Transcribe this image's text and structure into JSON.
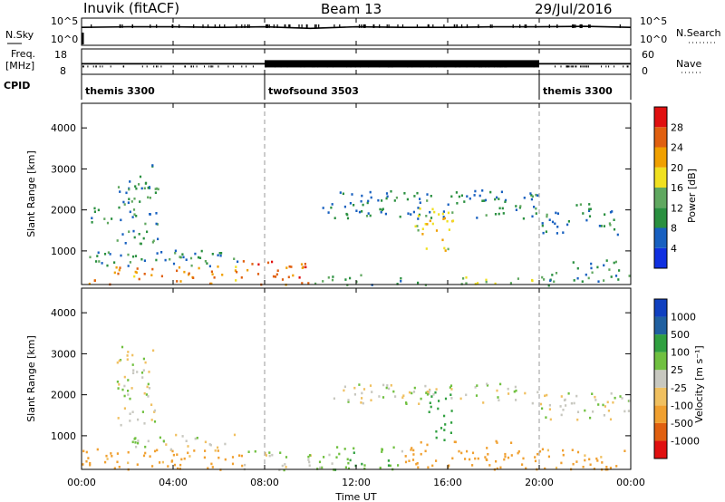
{
  "header": {
    "station": "Inuvik (fitACF)",
    "beam": "Beam 13",
    "date": "29/Jul/2016"
  },
  "side_labels": {
    "nsky": "N.Sky",
    "freq": "Freq.",
    "freq_unit": "[MHz]",
    "cpid": "CPID",
    "nsearch": "N.Search",
    "nave": "Nave"
  },
  "time_axis": {
    "label": "Time UT",
    "ticks": [
      "00:00",
      "04:00",
      "08:00",
      "12:00",
      "16:00",
      "20:00",
      "00:00"
    ]
  },
  "colors": {
    "power": [
      "#1030e0",
      "#1860c0",
      "#2a9040",
      "#60a860",
      "#f0e020",
      "#f0a000",
      "#e06010",
      "#e01010"
    ],
    "velocity": [
      "#1040c0",
      "#2060a0",
      "#30a040",
      "#70c040",
      "#c8c8c0",
      "#f0c060",
      "#f0a030",
      "#e06010",
      "#e01010"
    ]
  },
  "chart_data": [
    {
      "type": "line",
      "name": "noise-search",
      "left_ticks": [
        "10^5",
        "10^0"
      ],
      "right_ticks": [
        "10^5",
        "10^0"
      ],
      "x": [
        0,
        2,
        4,
        6,
        8,
        10,
        12,
        14,
        16,
        18,
        20,
        22,
        24
      ],
      "series": [
        {
          "name": "N.Sky",
          "values": [
            3.3,
            3.4,
            3.4,
            3.3,
            3.4,
            3.1,
            3.4,
            3.3,
            3.3,
            3.4,
            3.4,
            3.5,
            3.3
          ]
        }
      ]
    },
    {
      "type": "line",
      "name": "freq-nave",
      "left_ticks": [
        "18",
        "8"
      ],
      "right_ticks": [
        "60",
        "0"
      ],
      "x": [
        0,
        8,
        8,
        20,
        20,
        24
      ],
      "series": [
        {
          "name": "Freq.",
          "values": [
            12,
            12,
            12,
            12,
            12,
            12
          ]
        }
      ]
    },
    {
      "type": "table",
      "name": "cpid",
      "segments": [
        {
          "start": 0,
          "end": 8,
          "label": "themis 3300"
        },
        {
          "start": 8,
          "end": 20,
          "label": "twofsound 3503"
        },
        {
          "start": 20,
          "end": 24,
          "label": "themis 3300"
        }
      ]
    },
    {
      "type": "heatmap",
      "name": "power",
      "ylabel": "Slant Range [km]",
      "yticks": [
        "1000",
        "2000",
        "3000",
        "4000"
      ],
      "ylim": [
        180,
        4600
      ],
      "xlim": [
        0,
        24
      ],
      "colorbar": {
        "label": "Power [dB]",
        "ticks": [
          "4",
          "8",
          "12",
          "16",
          "20",
          "24",
          "28"
        ],
        "range": [
          0,
          30
        ]
      },
      "regions": [
        {
          "t0": 0,
          "t1": 7,
          "r0": 180,
          "r1": 650,
          "v": 22
        },
        {
          "t0": 0,
          "t1": 7,
          "r0": 650,
          "r1": 1050,
          "v": 9
        },
        {
          "t0": 0.2,
          "t1": 1.4,
          "r0": 1700,
          "r1": 2400,
          "v": 8
        },
        {
          "t0": 1.5,
          "t1": 3.4,
          "r0": 1200,
          "r1": 3200,
          "v": 10
        },
        {
          "t0": 7,
          "t1": 10,
          "r0": 180,
          "r1": 800,
          "v": 24
        },
        {
          "t0": 10,
          "t1": 14,
          "r0": 180,
          "r1": 450,
          "v": 10
        },
        {
          "t0": 10.5,
          "t1": 20,
          "r0": 1800,
          "r1": 2500,
          "v": 8
        },
        {
          "t0": 14.5,
          "t1": 16.2,
          "r0": 900,
          "r1": 2100,
          "v": 18
        },
        {
          "t0": 14,
          "t1": 20,
          "r0": 180,
          "r1": 400,
          "v": 14
        },
        {
          "t0": 20,
          "t1": 23.5,
          "r0": 1400,
          "r1": 2200,
          "v": 8
        },
        {
          "t0": 20,
          "t1": 24,
          "r0": 180,
          "r1": 800,
          "v": 10
        }
      ]
    },
    {
      "type": "heatmap",
      "name": "velocity",
      "ylabel": "Slant Range [km]",
      "yticks": [
        "1000",
        "2000",
        "3000",
        "4000"
      ],
      "ylim": [
        180,
        4600
      ],
      "xlim": [
        0,
        24
      ],
      "colorbar": {
        "label": "Velocity [m s⁻¹]",
        "ticks": [
          "1000",
          "500",
          "100",
          "25",
          "-25",
          "-100",
          "-500",
          "-1000"
        ],
        "range": [
          -1200,
          1200
        ]
      },
      "regions": [
        {
          "t0": 0,
          "t1": 7,
          "r0": 180,
          "r1": 700,
          "v": -150
        },
        {
          "t0": 2,
          "t1": 7,
          "r0": 650,
          "r1": 1050,
          "v": 0
        },
        {
          "t0": 1.5,
          "t1": 3.2,
          "r0": 1200,
          "r1": 3200,
          "v": 0
        },
        {
          "t0": 7,
          "t1": 10,
          "r0": 180,
          "r1": 700,
          "v": 0
        },
        {
          "t0": 10,
          "t1": 14,
          "r0": 180,
          "r1": 800,
          "v": 60
        },
        {
          "t0": 11,
          "t1": 20,
          "r0": 1800,
          "r1": 2300,
          "v": 0
        },
        {
          "t0": 15,
          "t1": 16.2,
          "r0": 900,
          "r1": 2100,
          "v": 300
        },
        {
          "t0": 14,
          "t1": 20,
          "r0": 180,
          "r1": 900,
          "v": -200
        },
        {
          "t0": 20,
          "t1": 24,
          "r0": 1400,
          "r1": 2100,
          "v": 0
        },
        {
          "t0": 20,
          "t1": 24,
          "r0": 180,
          "r1": 700,
          "v": -150
        }
      ]
    }
  ]
}
